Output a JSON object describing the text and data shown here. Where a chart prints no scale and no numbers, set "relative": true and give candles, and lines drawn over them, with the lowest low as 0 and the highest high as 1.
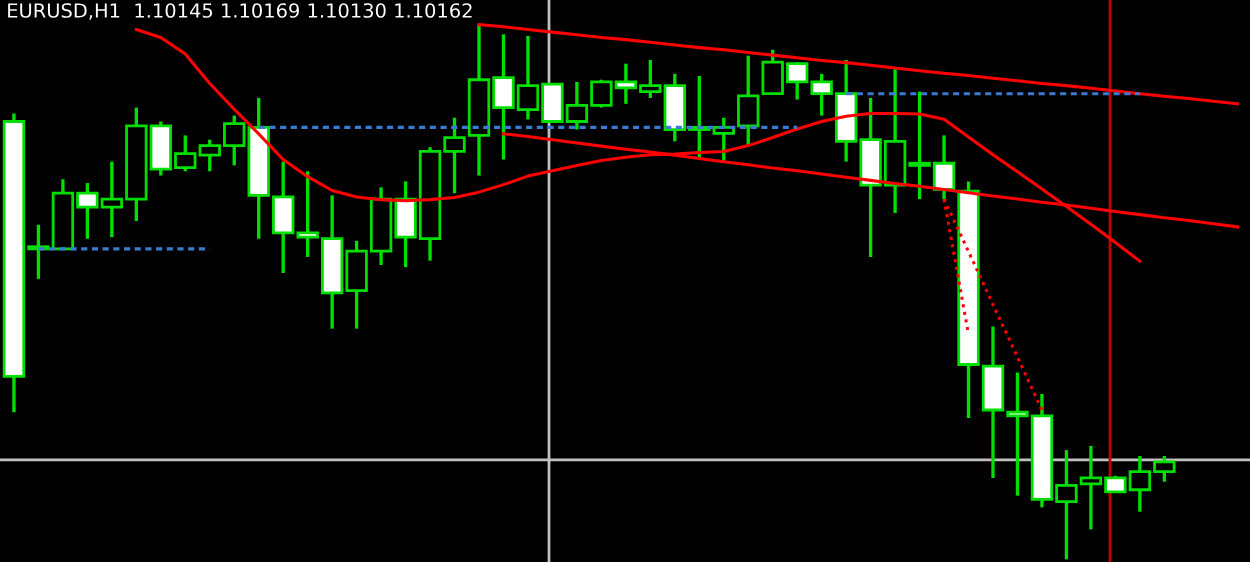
{
  "chart_data": {
    "type": "candlestick",
    "title": "EURUSD,H1  1.10145 1.10169 1.10130 1.10162",
    "relative": true,
    "grid": false,
    "legend": false,
    "categories": [
      null,
      null,
      null,
      null,
      null,
      null,
      null,
      null,
      null,
      null,
      null,
      null,
      null,
      null,
      null,
      null,
      null,
      null,
      null,
      null,
      null,
      null,
      null,
      null,
      null,
      null,
      null,
      null,
      null,
      null,
      null,
      null,
      null,
      null,
      null,
      null,
      null,
      null,
      null,
      null,
      null,
      null,
      null,
      null,
      null,
      null,
      null,
      null,
      null,
      null,
      null
    ],
    "ohlc": [
      [
        0.818,
        0.833,
        0.275,
        0.342
      ],
      [
        0.58,
        0.625,
        0.524,
        0.58
      ],
      [
        0.58,
        0.71,
        0.58,
        0.684
      ],
      [
        0.684,
        0.703,
        0.599,
        0.658
      ],
      [
        0.658,
        0.743,
        0.602,
        0.673
      ],
      [
        0.673,
        0.844,
        0.632,
        0.81
      ],
      [
        0.81,
        0.818,
        0.717,
        0.729
      ],
      [
        0.732,
        0.792,
        0.725,
        0.758
      ],
      [
        0.755,
        0.784,
        0.725,
        0.773
      ],
      [
        0.773,
        0.829,
        0.736,
        0.814
      ],
      [
        0.807,
        0.862,
        0.599,
        0.68
      ],
      [
        0.677,
        0.743,
        0.535,
        0.61
      ],
      [
        0.61,
        0.725,
        0.565,
        0.602
      ],
      [
        0.599,
        0.68,
        0.431,
        0.498
      ],
      [
        0.502,
        0.595,
        0.431,
        0.576
      ],
      [
        0.576,
        0.695,
        0.55,
        0.673
      ],
      [
        0.673,
        0.706,
        0.546,
        0.602
      ],
      [
        0.599,
        0.77,
        0.558,
        0.762
      ],
      [
        0.762,
        0.825,
        0.684,
        0.788
      ],
      [
        0.792,
        1.0,
        0.717,
        0.896
      ],
      [
        0.9,
        0.981,
        0.747,
        0.844
      ],
      [
        0.84,
        0.978,
        0.822,
        0.885
      ],
      [
        0.888,
        0.888,
        0.818,
        0.818
      ],
      [
        0.818,
        0.892,
        0.803,
        0.848
      ],
      [
        0.848,
        0.896,
        0.844,
        0.892
      ],
      [
        0.892,
        0.926,
        0.851,
        0.881
      ],
      [
        0.874,
        0.933,
        0.862,
        0.885
      ],
      [
        0.885,
        0.907,
        0.781,
        0.803
      ],
      [
        0.807,
        0.903,
        0.747,
        0.803
      ],
      [
        0.796,
        0.825,
        0.743,
        0.807
      ],
      [
        0.81,
        0.941,
        0.773,
        0.866
      ],
      [
        0.87,
        0.952,
        0.87,
        0.929
      ],
      [
        0.926,
        0.929,
        0.859,
        0.892
      ],
      [
        0.892,
        0.907,
        0.829,
        0.87
      ],
      [
        0.87,
        0.933,
        0.743,
        0.781
      ],
      [
        0.784,
        0.862,
        0.565,
        0.699
      ],
      [
        0.699,
        0.918,
        0.647,
        0.781
      ],
      [
        0.736,
        0.874,
        0.673,
        0.736
      ],
      [
        0.74,
        0.792,
        0.673,
        0.691
      ],
      [
        0.688,
        0.706,
        0.264,
        0.364
      ],
      [
        0.361,
        0.435,
        0.152,
        0.279
      ],
      [
        0.275,
        0.349,
        0.119,
        0.268
      ],
      [
        0.268,
        0.309,
        0.097,
        0.112
      ],
      [
        0.108,
        0.204,
        0.0,
        0.138
      ],
      [
        0.141,
        0.212,
        0.056,
        0.152
      ],
      [
        0.152,
        0.156,
        0.126,
        0.126
      ],
      [
        0.13,
        0.193,
        0.089,
        0.164
      ],
      [
        0.164,
        0.193,
        0.145,
        0.182
      ],
      null,
      null,
      null
    ],
    "series": [
      {
        "type": "line",
        "color": "#ff0000",
        "line_style": "solid",
        "values": [
          null,
          null,
          null,
          null,
          null,
          0.99,
          0.975,
          0.944,
          0.889,
          0.841,
          0.795,
          0.747,
          0.715,
          0.689,
          0.677,
          0.672,
          0.67,
          0.672,
          0.676,
          0.686,
          0.7,
          0.716,
          0.726,
          0.736,
          0.745,
          0.751,
          0.756,
          0.757,
          0.76,
          0.762,
          0.773,
          0.788,
          0.804,
          0.818,
          0.828,
          0.833,
          0.833,
          0.832,
          0.822,
          0.789,
          0.756,
          0.724,
          0.692,
          0.659,
          0.626,
          0.592,
          0.557,
          null,
          null,
          null,
          null
        ]
      },
      {
        "type": "line",
        "color": "#ff0000",
        "line_style": "solid",
        "values": [
          null,
          null,
          null,
          null,
          null,
          null,
          null,
          null,
          null,
          null,
          null,
          null,
          null,
          null,
          null,
          null,
          null,
          null,
          null,
          0.999,
          0.995,
          0.99,
          0.985,
          0.98,
          0.975,
          0.971,
          0.966,
          0.961,
          0.956,
          0.952,
          0.947,
          0.942,
          0.937,
          0.932,
          0.928,
          0.923,
          0.918,
          0.913,
          0.908,
          0.904,
          0.899,
          0.894,
          0.889,
          0.885,
          0.88,
          0.875,
          0.87,
          0.865,
          0.861,
          0.856,
          0.851
        ]
      },
      {
        "type": "line",
        "color": "#ff0000",
        "line_style": "solid",
        "values": [
          null,
          null,
          null,
          null,
          null,
          null,
          null,
          null,
          null,
          null,
          null,
          null,
          null,
          null,
          null,
          null,
          null,
          null,
          null,
          null,
          0.795,
          0.79,
          0.784,
          0.778,
          0.772,
          0.766,
          0.761,
          0.755,
          0.749,
          0.743,
          0.737,
          0.731,
          0.726,
          0.72,
          0.714,
          0.708,
          0.702,
          0.697,
          0.691,
          0.685,
          0.679,
          0.673,
          0.667,
          0.662,
          0.656,
          0.65,
          0.644,
          0.638,
          0.633,
          0.627,
          0.621
        ]
      },
      {
        "type": "line",
        "color": "#3a7bd5",
        "line_style": "dashed",
        "values": [
          null,
          0.58,
          0.58,
          0.58,
          0.58,
          0.58,
          0.58,
          0.58,
          0.58,
          null,
          null,
          null,
          null,
          null,
          null,
          null,
          null,
          null,
          null,
          null,
          null,
          null,
          null,
          null,
          null,
          null,
          null,
          null,
          null,
          null,
          null,
          null,
          null,
          null,
          null,
          null,
          null,
          null,
          null,
          null,
          null,
          null,
          null,
          null,
          null,
          null,
          null,
          null,
          null,
          null,
          null
        ]
      },
      {
        "type": "line",
        "color": "#3a7bd5",
        "line_style": "dashed",
        "values": [
          null,
          null,
          null,
          null,
          null,
          null,
          null,
          null,
          null,
          null,
          0.807,
          0.807,
          0.807,
          0.807,
          0.807,
          0.807,
          0.807,
          0.807,
          0.807,
          0.807,
          0.807,
          0.807,
          0.807,
          0.807,
          0.807,
          0.807,
          0.807,
          0.807,
          0.807,
          0.807,
          0.807,
          0.807,
          0.807,
          null,
          null,
          null,
          null,
          null,
          null,
          null,
          null,
          null,
          null,
          null,
          null,
          null,
          null,
          null,
          null,
          null,
          null
        ]
      },
      {
        "type": "line",
        "color": "#3a7bd5",
        "line_style": "dashed",
        "values": [
          null,
          null,
          null,
          null,
          null,
          null,
          null,
          null,
          null,
          null,
          null,
          null,
          null,
          null,
          null,
          null,
          null,
          null,
          null,
          null,
          null,
          null,
          null,
          null,
          null,
          null,
          null,
          null,
          null,
          null,
          null,
          null,
          null,
          null,
          0.87,
          0.87,
          0.87,
          0.87,
          0.87,
          0.87,
          0.87,
          0.87,
          0.87,
          0.87,
          0.87,
          0.87,
          0.87,
          null,
          null,
          null,
          null
        ]
      },
      {
        "type": "line",
        "color": "#ff0000",
        "line_style": "dotted",
        "values": [
          null,
          null,
          null,
          null,
          null,
          null,
          null,
          null,
          null,
          null,
          null,
          null,
          null,
          null,
          null,
          null,
          null,
          null,
          null,
          null,
          null,
          null,
          null,
          null,
          null,
          null,
          null,
          null,
          null,
          null,
          null,
          null,
          null,
          null,
          null,
          null,
          null,
          null,
          0.673,
          0.42,
          null,
          null,
          null,
          null,
          null,
          null,
          null,
          null,
          null,
          null,
          null
        ]
      },
      {
        "type": "line",
        "color": "#ff0000",
        "line_style": "dotted",
        "values": [
          null,
          null,
          null,
          null,
          null,
          null,
          null,
          null,
          null,
          null,
          null,
          null,
          null,
          null,
          null,
          null,
          null,
          null,
          null,
          null,
          null,
          null,
          null,
          null,
          null,
          null,
          null,
          null,
          null,
          null,
          null,
          null,
          null,
          null,
          null,
          null,
          null,
          null,
          0.673,
          0.575,
          0.476,
          0.378,
          0.279,
          null,
          null,
          null,
          null,
          null,
          null,
          null,
          null
        ]
      }
    ],
    "ref_lines": [
      {
        "axis": "y",
        "value": 0.186,
        "color": "#c0c0c0"
      }
    ]
  }
}
